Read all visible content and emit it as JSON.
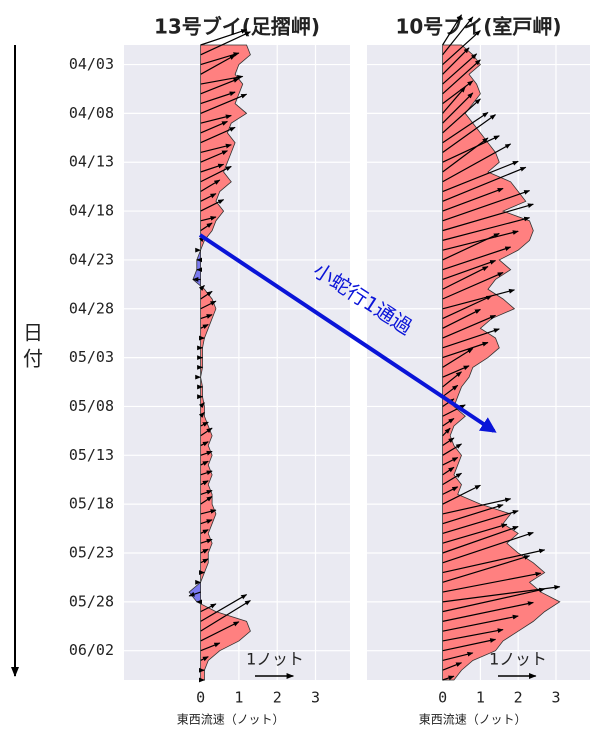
{
  "chart_data": {
    "type": "area",
    "categories": [
      null,
      null,
      "04/03",
      null,
      null,
      null,
      null,
      "04/08",
      null,
      null,
      null,
      null,
      "04/13",
      null,
      null,
      null,
      null,
      "04/18",
      null,
      null,
      null,
      null,
      "04/23",
      null,
      null,
      null,
      null,
      "04/28",
      null,
      null,
      null,
      null,
      "05/03",
      null,
      null,
      null,
      null,
      "05/08",
      null,
      null,
      null,
      null,
      "05/13",
      null,
      null,
      null,
      null,
      "05/18",
      null,
      null,
      null,
      null,
      "05/23",
      null,
      null,
      null,
      null,
      "05/28",
      null,
      null,
      null,
      null,
      "06/02",
      null,
      null,
      null
    ],
    "series": [
      {
        "name": "13号ブイ(足摺岬)",
        "color": "#ff8080",
        "negative_color": "#7b7bf0",
        "values": [
          1.2,
          1.3,
          1.0,
          0.9,
          1.1,
          1.0,
          0.9,
          1.2,
          0.8,
          0.7,
          0.9,
          0.8,
          0.7,
          0.6,
          0.8,
          0.5,
          0.4,
          0.6,
          0.4,
          0.3,
          0.1,
          0,
          -0.1,
          -0.1,
          -0.2,
          0.1,
          0.3,
          0.4,
          0.3,
          0.2,
          0.1,
          0.05,
          0.05,
          0.05,
          0,
          0.05,
          0.05,
          0.1,
          0.1,
          0.2,
          0.3,
          0.2,
          0.3,
          0.2,
          0.3,
          0.2,
          0.3,
          0.3,
          0.4,
          0.3,
          0.2,
          0.3,
          0.2,
          0.2,
          0.1,
          0,
          -0.3,
          -0.1,
          0.4,
          1.2,
          1.3,
          1.0,
          0.5,
          0.2,
          0.1,
          0.1
        ],
        "north_values": [
          0.4,
          0.6,
          0.3,
          0.5,
          0.2,
          0.4,
          0.3,
          0.5,
          0.2,
          0.3,
          0.4,
          0.2,
          0.3,
          0.2,
          0.4,
          0.3,
          0.2,
          0.3,
          0.1,
          0.2,
          0.1,
          0,
          0,
          0,
          0,
          0.1,
          0.2,
          0.2,
          0.1,
          0.1,
          0,
          0,
          0,
          0,
          0,
          0,
          0,
          0.1,
          0.1,
          0.1,
          0.2,
          0.1,
          0.1,
          0.1,
          0.1,
          0.1,
          0.1,
          0.2,
          0.1,
          0.1,
          0.1,
          0.1,
          0.1,
          0.1,
          0,
          0,
          -0.1,
          0,
          0.2,
          0.7,
          0.8,
          0.5,
          0.2,
          0.1,
          0,
          0
        ]
      },
      {
        "name": "10号ブイ(室戸岬)",
        "color": "#ff8080",
        "negative_color": "#7b7bf0",
        "values": [
          0.5,
          0.8,
          1.0,
          0.7,
          0.9,
          1.0,
          0.8,
          0.6,
          0.8,
          1.0,
          1.2,
          1.4,
          1.5,
          1.2,
          1.8,
          2.0,
          2.2,
          1.6,
          2.3,
          2.4,
          2.3,
          2.0,
          1.5,
          1.8,
          1.4,
          1.2,
          1.6,
          1.9,
          1.3,
          1.0,
          1.4,
          1.5,
          1.2,
          0.8,
          0.7,
          0.5,
          0.4,
          0.3,
          0.6,
          0.3,
          0.2,
          0.3,
          0.5,
          0.4,
          0.3,
          0.5,
          0.4,
          1.0,
          1.8,
          1.6,
          2.0,
          1.7,
          2.0,
          2.4,
          2.7,
          2.3,
          2.6,
          3.1,
          2.7,
          2.4,
          2.0,
          1.6,
          1.4,
          0.8,
          0.5,
          0.3
        ],
        "north_values": [
          0.8,
          1.0,
          0.9,
          0.7,
          0.8,
          0.9,
          0.6,
          0.7,
          0.8,
          0.9,
          0.8,
          1.0,
          0.7,
          0.9,
          1.0,
          0.8,
          0.9,
          0.6,
          0.8,
          0.7,
          0.6,
          0.5,
          0.7,
          0.6,
          0.5,
          0.6,
          0.7,
          0.5,
          0.6,
          0.5,
          0.6,
          0.5,
          0.4,
          0.5,
          0.3,
          0.4,
          0.3,
          0.2,
          0.3,
          0.2,
          0.2,
          0.2,
          0.3,
          0.2,
          0.2,
          0.3,
          0.2,
          0.5,
          0.4,
          0.5,
          0.6,
          0.5,
          0.7,
          0.8,
          0.6,
          0.7,
          0.5,
          0.4,
          0.6,
          0.5,
          0.4,
          0.3,
          0.3,
          0.2,
          0.2,
          0.1
        ]
      }
    ],
    "xlim": [
      -2,
      3.9
    ],
    "xticks": [
      0,
      1,
      2,
      3
    ],
    "xlabel": "東西流速（ノット）",
    "ylabel": "日付",
    "grid": true,
    "quiver_key": {
      "label": "1ノット",
      "value": 1
    },
    "annotation": "小蛇行1通過"
  }
}
